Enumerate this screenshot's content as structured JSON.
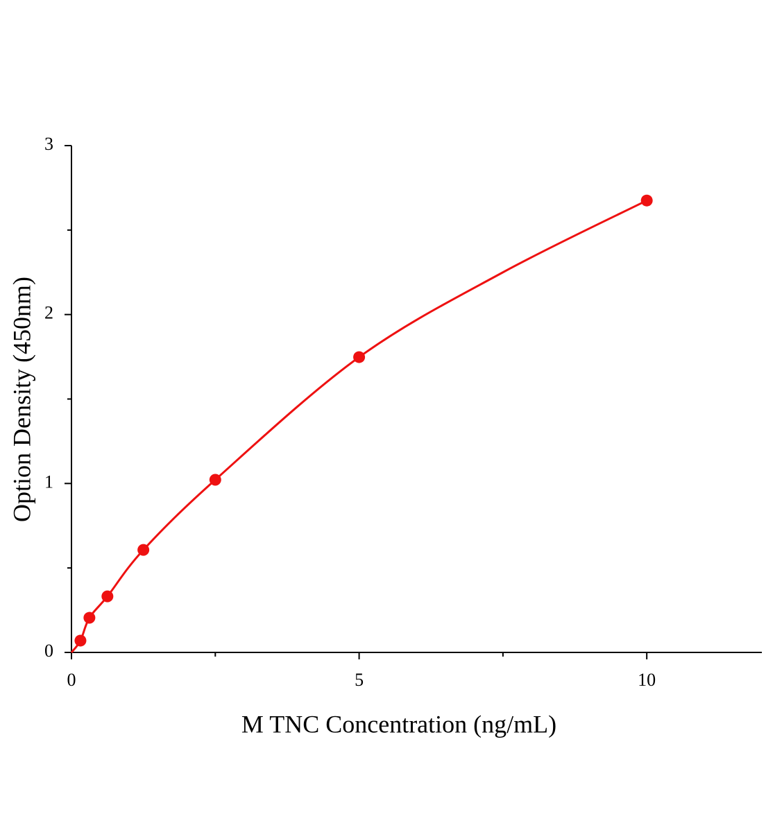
{
  "chart_data": {
    "type": "scatter",
    "x_label": "M  TNC  Concentration (ng/mL)",
    "y_label": "Option Density (450nm)",
    "xlim": [
      0,
      12
    ],
    "ylim": [
      0,
      3
    ],
    "xticks": [
      0,
      5,
      10
    ],
    "yticks": [
      0,
      1,
      2,
      3
    ],
    "xminor": [
      2.5,
      7.5
    ],
    "yminor": [
      0.5,
      1.5,
      2.5
    ],
    "series": [
      {
        "color": "#ee1111",
        "x": [
          0.156,
          0.312,
          0.625,
          1.25,
          2.5,
          5,
          10
        ],
        "values": [
          0.07,
          0.205,
          0.332,
          0.607,
          1.022,
          1.748,
          2.675
        ]
      }
    ],
    "curve": {
      "color": "#ee1111",
      "x": [
        0,
        0.156,
        0.312,
        0.625,
        1.25,
        2.5,
        5,
        7.5,
        10
      ],
      "values": [
        0,
        0.07,
        0.205,
        0.332,
        0.607,
        1.022,
        1.748,
        2.25,
        2.675
      ]
    }
  }
}
